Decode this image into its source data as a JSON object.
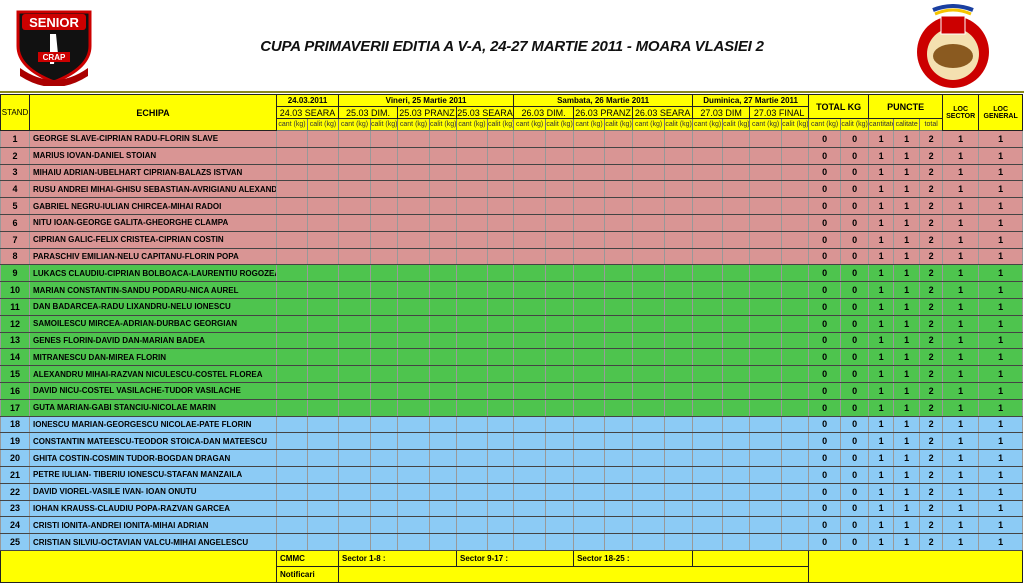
{
  "title": "CUPA PRIMAVERII EDITIA A V-A, 24-27 MARTIE 2011 - MOARA VLASIEI 2",
  "logos": {
    "left": "SENIOR CRAP CLUB SPORTIV",
    "right": "PESCUIT SPORTIV LACUL MOARA VLASIEI 2"
  },
  "colors": {
    "header": "#ffff00",
    "sector1": "#d99594",
    "sector2": "#4ec44e",
    "sector3": "#8ccbf5"
  },
  "header": {
    "stand": "STAND",
    "echipa": "ECHIPA",
    "days": [
      "24.03.2011",
      "Vineri, 25 Martie 2011",
      "Sambata, 26 Martie 2011",
      "Duminica, 27 Martie 2011"
    ],
    "sessions": [
      "24.03 SEARA",
      "25.03 DIM.",
      "25.03 PRANZ",
      "25.03 SEARA",
      "26.03 DIM.",
      "26.03 PRANZ",
      "26.03 SEARA",
      "27.03 DIM",
      "27.03 FINAL"
    ],
    "cant": "cant (kg)",
    "calit": "calit (kg)",
    "total_kg": "TOTAL KG",
    "puncte": "PUNCTE",
    "puncte_sub": [
      "cantitate",
      "calitate",
      "total"
    ],
    "loc_sector": "LOC SECTOR",
    "loc_general": "LOC GENERAL"
  },
  "rows": [
    {
      "stand": "1",
      "team": "GEORGE SLAVE-CIPRIAN RADU-FLORIN SLAVE",
      "sector": 1
    },
    {
      "stand": "2",
      "team": "MARIUS IOVAN-DANIEL STOIAN",
      "sector": 1
    },
    {
      "stand": "3",
      "team": "MIHAIU ADRIAN-UBELHART CIPRIAN-BALAZS ISTVAN",
      "sector": 1
    },
    {
      "stand": "4",
      "team": "RUSU ANDREI MIHAI-GHISU SEBASTIAN-AVRIGIANU ALEXANDRU",
      "sector": 1
    },
    {
      "stand": "5",
      "team": "GABRIEL NEGRU-IULIAN CHIRCEA-MIHAI RADOI",
      "sector": 1
    },
    {
      "stand": "6",
      "team": "NITU IOAN-GEORGE GALITA-GHEORGHE CLAMPA",
      "sector": 1
    },
    {
      "stand": "7",
      "team": "CIPRIAN GALIC-FELIX CRISTEA-CIPRIAN COSTIN",
      "sector": 1
    },
    {
      "stand": "8",
      "team": "PARASCHIV EMILIAN-NELU CAPITANU-FLORIN POPA",
      "sector": 1
    },
    {
      "stand": "9",
      "team": "LUKACS CLAUDIU-CIPRIAN BOLBOACA-LAURENTIU ROGOZEA",
      "sector": 2
    },
    {
      "stand": "10",
      "team": "MARIAN CONSTANTIN-SANDU PODARU-NICA AUREL",
      "sector": 2
    },
    {
      "stand": "11",
      "team": "DAN BADARCEA-RADU LIXANDRU-NELU IONESCU",
      "sector": 2
    },
    {
      "stand": "12",
      "team": "SAMOILESCU MIRCEA-ADRIAN-DURBAC GEORGIAN",
      "sector": 2
    },
    {
      "stand": "13",
      "team": "GENES FLORIN-DAVID DAN-MARIAN BADEA",
      "sector": 2
    },
    {
      "stand": "14",
      "team": "MITRANESCU DAN-MIREA FLORIN",
      "sector": 2
    },
    {
      "stand": "15",
      "team": "ALEXANDRU MIHAI-RAZVAN NICULESCU-COSTEL FLOREA",
      "sector": 2
    },
    {
      "stand": "16",
      "team": "DAVID NICU-COSTEL VASILACHE-TUDOR VASILACHE",
      "sector": 2
    },
    {
      "stand": "17",
      "team": "GUTA MARIAN-GABI STANCIU-NICOLAE MARIN",
      "sector": 2
    },
    {
      "stand": "18",
      "team": "IONESCU MARIAN-GEORGESCU NICOLAE-PATE FLORIN",
      "sector": 3
    },
    {
      "stand": "19",
      "team": "CONSTANTIN MATEESCU-TEODOR STOICA-DAN MATEESCU",
      "sector": 3
    },
    {
      "stand": "20",
      "team": "GHITA COSTIN-COSMIN TUDOR-BOGDAN DRAGAN",
      "sector": 3
    },
    {
      "stand": "21",
      "team": "PETRE IULIAN- TIBERIU IONESCU-STAFAN MANZAILA",
      "sector": 3
    },
    {
      "stand": "22",
      "team": "DAVID VIOREL-VASILE IVAN- IOAN ONUTU",
      "sector": 3
    },
    {
      "stand": "23",
      "team": "IOHAN KRAUSS-CLAUDIU POPA-RAZVAN GARCEA",
      "sector": 3
    },
    {
      "stand": "24",
      "team": "CRISTI IONITA-ANDREI IONITA-MIHAI ADRIAN",
      "sector": 3
    },
    {
      "stand": "25",
      "team": "CRISTIAN SILVIU-OCTAVIAN VALCU-MIHAI ANGELESCU",
      "sector": 3
    }
  ],
  "row_values": {
    "total_cant": "0",
    "total_calit": "0",
    "p_cantitate": "1",
    "p_calitate": "1",
    "p_total": "2",
    "loc_sector": "1",
    "loc_general": "1"
  },
  "footer": {
    "cmmc": "CMMC",
    "sector1": "Sector 1-8 :",
    "sector2": "Sector 9-17 :",
    "sector3": "Sector 18-25 :",
    "notificari": "Notificari"
  }
}
